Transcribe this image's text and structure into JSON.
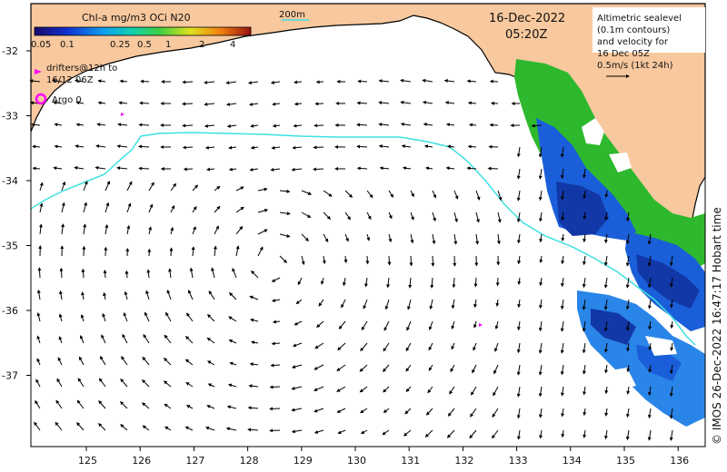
{
  "colorbar": {
    "title": "Chl-a mg/m3 OCi N20",
    "ticks": [
      "0.05",
      "0.1",
      "0.25",
      "0.5",
      "1",
      "2",
      "4"
    ]
  },
  "date": "16-Dec-2022",
  "time": "05:20Z",
  "contour_label": "200m",
  "legend": {
    "line1": "Altimetric sealevel",
    "line2": "(0.1m contours)",
    "line3": "and velocity for",
    "line4": "16 Dec 05Z",
    "line5": "0.5m/s (1kt 24h)"
  },
  "drifters_line1": "drifters@12h to",
  "drifters_line2": "16/12 06Z",
  "argo_label": "Argo 0",
  "credit": "© IMOS 26-Dec-2022 16:47:17 Hobart time",
  "x_ticks": [
    "125",
    "126",
    "127",
    "128",
    "129",
    "130",
    "131",
    "132",
    "133",
    "134",
    "135",
    "136"
  ],
  "y_ticks": [
    "-32",
    "-33",
    "-34",
    "-35",
    "-36",
    "-37"
  ],
  "colors": {
    "land": "#f8c89e",
    "contour": "#40e0e0",
    "drifter": "#ff00ff",
    "chl_green": "#2eb82e",
    "chl_blue": "#1a5fd9"
  }
}
